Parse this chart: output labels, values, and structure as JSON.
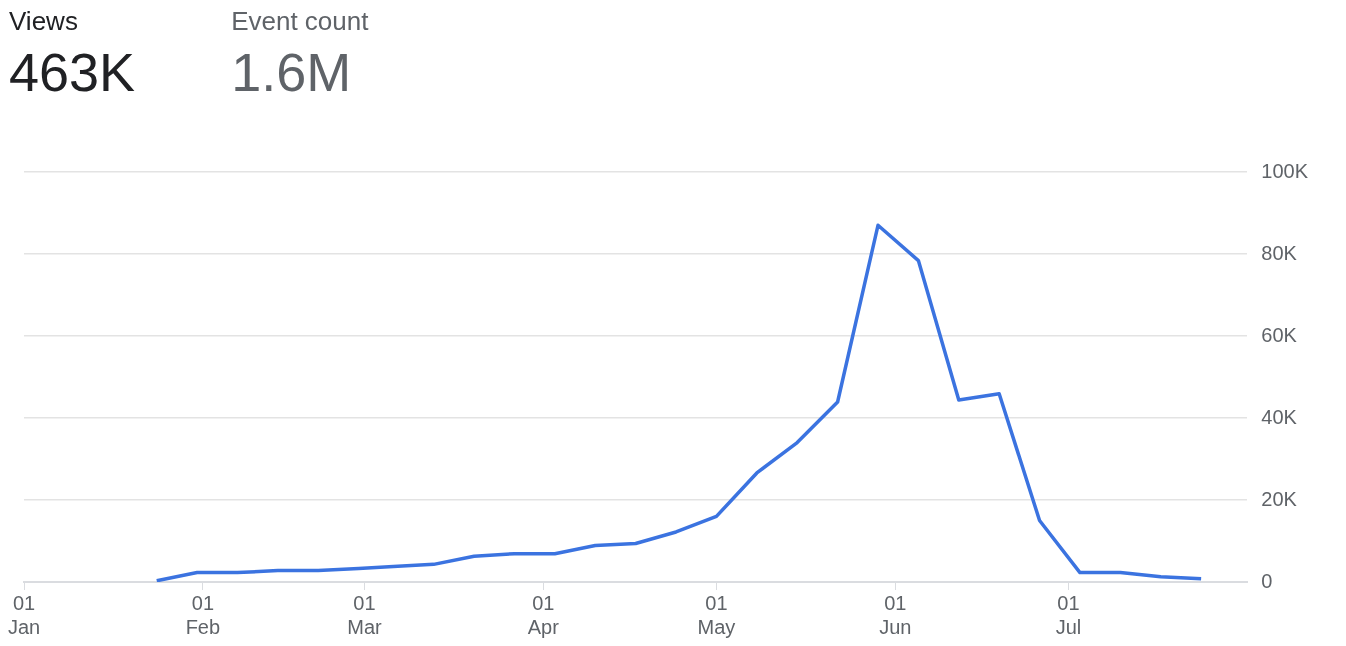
{
  "chart_data": {
    "type": "line",
    "annotations": [
      "Views",
      "463K",
      "Event count",
      "1.6M"
    ],
    "x": [
      "--01-24",
      "--01-31",
      "--02-07",
      "--02-14",
      "--02-21",
      "--02-28",
      "--03-06",
      "--03-13",
      "--03-20",
      "--03-27",
      "--04-03",
      "--04-10",
      "--04-17",
      "--04-24",
      "--05-01",
      "--05-08",
      "--05-15",
      "--05-22",
      "--05-29",
      "--06-05",
      "--06-12",
      "--06-19",
      "--06-26",
      "--07-03",
      "--07-10",
      "--07-17",
      "--07-24"
    ],
    "series": [
      {
        "color": "#3b73e0",
        "values": [
          300,
          2300,
          2300,
          2800,
          2800,
          3300,
          3800,
          4300,
          6300,
          6900,
          6900,
          8900,
          9400,
          12200,
          16000,
          26600,
          34000,
          43900,
          87000,
          78400,
          44400,
          45900,
          15000,
          2300,
          2300,
          1300,
          800
        ]
      }
    ],
    "xlim": [
      "--01-01",
      "--08-01"
    ],
    "xticks": [
      {
        "value": "--01-01",
        "label": "01\nJan"
      },
      {
        "value": "--02-01",
        "label": "01\nFeb"
      },
      {
        "value": "--03-01",
        "label": "01\nMar"
      },
      {
        "value": "--04-01",
        "label": "01\nApr"
      },
      {
        "value": "--05-01",
        "label": "01\nMay"
      },
      {
        "value": "--06-01",
        "label": "01\nJun"
      },
      {
        "value": "--07-01",
        "label": "01\nJul"
      }
    ],
    "ylim": [
      0,
      100000
    ],
    "yticks": [
      {
        "value": 0,
        "label": "0"
      },
      {
        "value": 20000,
        "label": "20K"
      },
      {
        "value": 40000,
        "label": "40K"
      },
      {
        "value": 60000,
        "label": "60K"
      },
      {
        "value": 80000,
        "label": "80K"
      },
      {
        "value": 100000,
        "label": "100K"
      }
    ],
    "grid": "y",
    "legend": false,
    "marker": "none",
    "line_style": "solid"
  }
}
